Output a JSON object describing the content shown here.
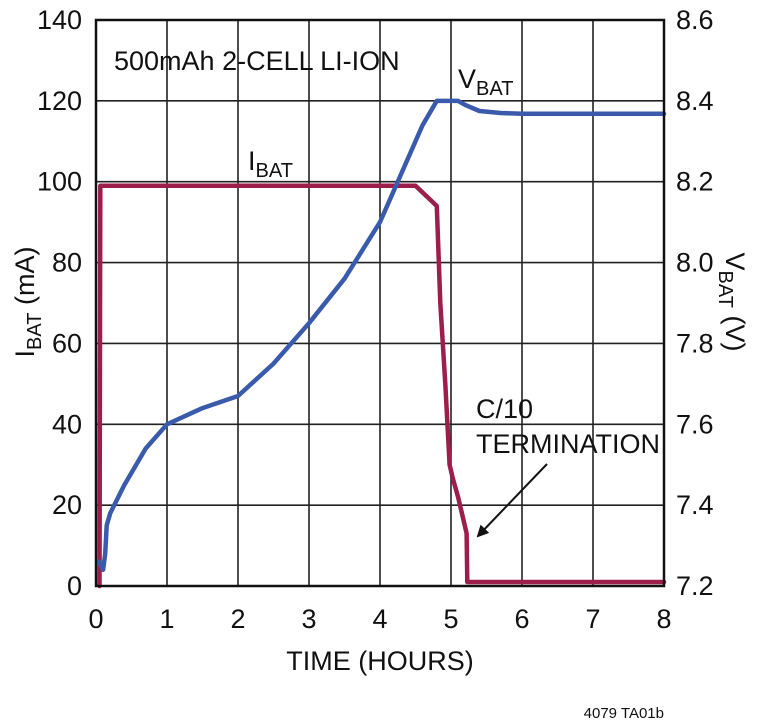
{
  "chart_data": {
    "type": "line",
    "annotation_title": "500mAh 2-CELL LI-ION",
    "xlabel": "TIME (HOURS)",
    "ylabel_left": {
      "main": "I",
      "sub": "BAT",
      "rest": " (mA)"
    },
    "ylabel_right": {
      "main": "V",
      "sub": "BAT",
      "rest": " (V)"
    },
    "xlim": [
      0,
      8
    ],
    "ylim_left": [
      0,
      140
    ],
    "ylim_right": [
      7.2,
      8.6
    ],
    "x_ticks": [
      "0",
      "1",
      "2",
      "3",
      "4",
      "5",
      "6",
      "7",
      "8"
    ],
    "y_left_ticks": [
      "0",
      "20",
      "40",
      "60",
      "80",
      "100",
      "120",
      "140"
    ],
    "y_right_ticks": [
      "7.2",
      "7.4",
      "7.6",
      "7.8",
      "8.0",
      "8.2",
      "8.4",
      "8.6"
    ],
    "grid": true,
    "colors": {
      "ibat": "#9b1e4b",
      "vbat": "#3a5bab",
      "grid": "#222222"
    },
    "series": [
      {
        "name": "IBAT",
        "label": {
          "main": "I",
          "sub": "BAT"
        },
        "axis": "left",
        "x": [
          0.05,
          0.06,
          0.1,
          4.5,
          4.8,
          4.85,
          4.92,
          4.98,
          5.02,
          5.1,
          5.18,
          5.22,
          5.23,
          5.3,
          8.0
        ],
        "y": [
          0,
          99,
          99,
          99,
          94,
          70,
          50,
          30,
          27,
          22,
          16,
          13,
          1,
          1,
          1
        ]
      },
      {
        "name": "VBAT",
        "label": {
          "main": "V",
          "sub": "BAT"
        },
        "axis": "right",
        "x": [
          0.04,
          0.1,
          0.13,
          0.15,
          0.2,
          0.4,
          0.7,
          1.0,
          1.5,
          2.0,
          2.5,
          3.0,
          3.5,
          4.0,
          4.3,
          4.6,
          4.8,
          5.0,
          5.1,
          5.2,
          5.4,
          5.7,
          6.0,
          7.0,
          8.0
        ],
        "y": [
          7.26,
          7.24,
          7.28,
          7.35,
          7.38,
          7.45,
          7.54,
          7.6,
          7.64,
          7.67,
          7.75,
          7.85,
          7.96,
          8.1,
          8.22,
          8.34,
          8.4,
          8.4,
          8.4,
          8.39,
          8.375,
          8.37,
          8.368,
          8.368,
          8.368
        ]
      }
    ],
    "annotations": [
      {
        "line1": "C/10",
        "line2": "TERMINATION"
      }
    ],
    "footnote": "4079 TA01b"
  }
}
